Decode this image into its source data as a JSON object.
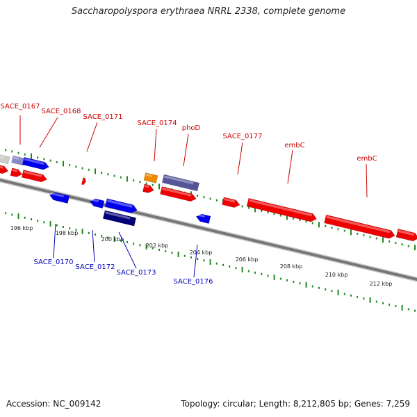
{
  "title": "Saccharopolyspora erythraea NRRL 2338, complete genome",
  "footer": {
    "accession": "Accession: NC_009142",
    "topology": "Topology: circular; Length: 8,212,805 bp; Genes: 7,259"
  },
  "colors": {
    "forward_gene": "#ee0000",
    "reverse_gene": "#0000ee",
    "forward_label": "#cc0000",
    "reverse_label": "#0000bb",
    "backbone": "#777777",
    "gc_ticks": "#228822"
  },
  "scale_labels": [
    "196 kbp",
    "198 kbp",
    "200 kbp",
    "202 kbp",
    "204 kbp",
    "206 kbp",
    "208 kbp",
    "210 kbp",
    "212 kbp"
  ],
  "forward_gene_labels": [
    "SACE_0167",
    "SACE_0168",
    "SACE_0171",
    "SACE_0174",
    "phoD",
    "SACE_0177",
    "embC",
    "embC"
  ],
  "reverse_gene_labels": [
    "SACE_0170",
    "SACE_0172",
    "SACE_0173",
    "SACE_0176"
  ]
}
